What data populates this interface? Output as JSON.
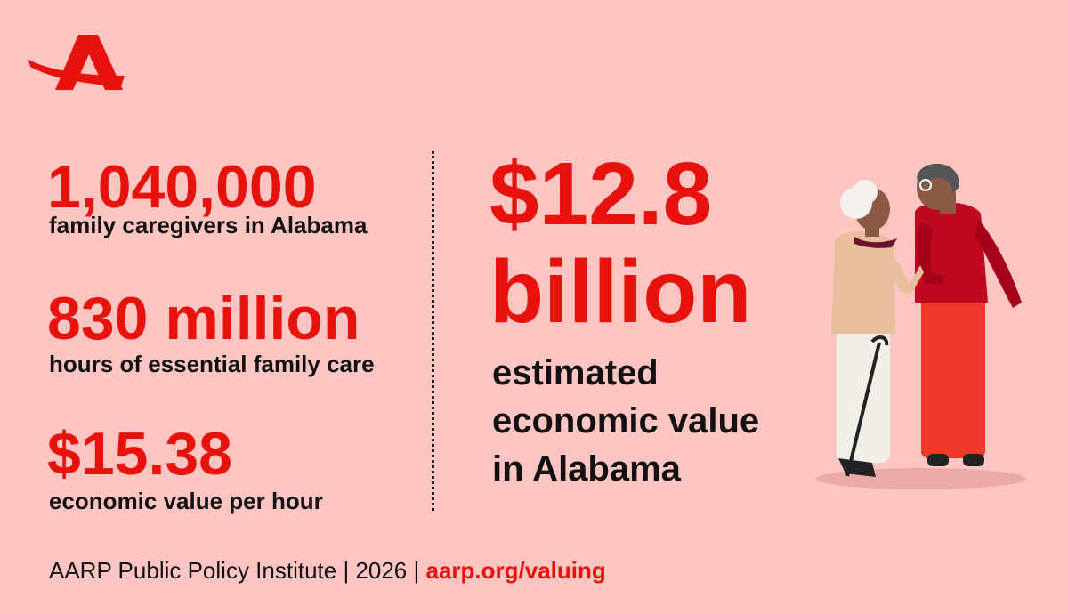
{
  "stats": [
    {
      "value": "1,040,000",
      "label": "family caregivers in Alabama"
    },
    {
      "value": "830 million",
      "label": "hours of essential family care"
    },
    {
      "value": "$15.38",
      "label": "economic value per hour"
    }
  ],
  "headline": {
    "value_lines": [
      "$12.8",
      "billion"
    ],
    "description_lines": [
      "estimated",
      "economic value",
      "in Alabama"
    ]
  },
  "footer": {
    "source": "AARP Public Policy Institute | 2026 |",
    "link": "aarp.org/valuing"
  }
}
